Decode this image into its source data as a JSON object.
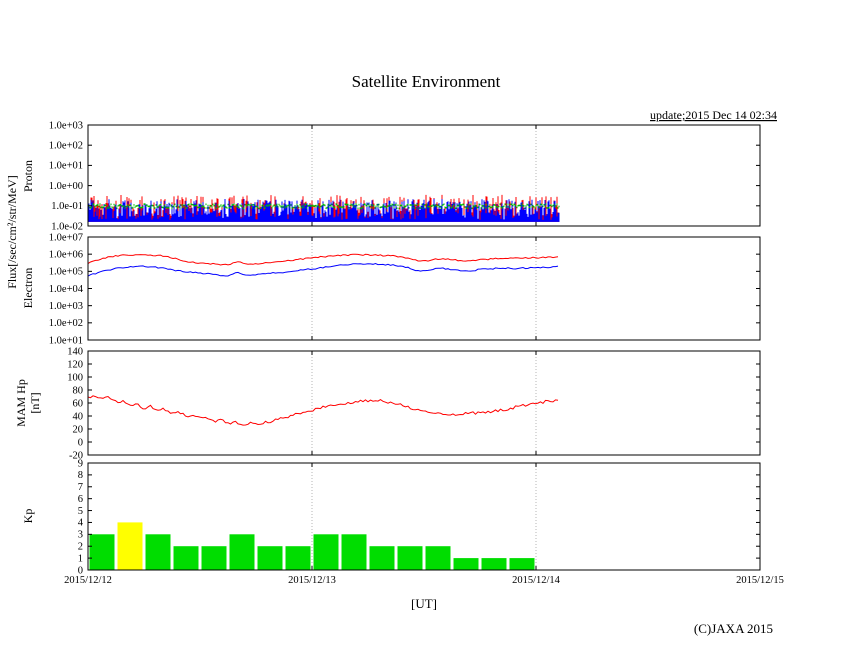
{
  "title": "Satellite Environment",
  "update_text": "update;2015 Dec 14 02:34",
  "copyright": "(C)JAXA 2015",
  "xaxis_label": "[UT]",
  "flux_axis_label": "Flux[/sec/cm²/str/MeV]",
  "x_ticklabels": [
    "2015/12/12",
    "2015/12/13",
    "2015/12/14",
    "2015/12/15"
  ],
  "colors": {
    "red": "#ff0000",
    "blue": "#0000ff",
    "proton_green": "#00bb00",
    "kp_green": "#00dd00",
    "kp_yellow": "#ffff00",
    "grid": "#b4b4b4",
    "frame": "#000000"
  },
  "chart_data": [
    {
      "type": "line",
      "name": "proton-flux",
      "ylabel": "Proton",
      "yscale": "log",
      "ylim": [
        0.01,
        1000
      ],
      "ytick_labels": [
        "1.0e+03",
        "1.0e+02",
        "1.0e+01",
        "1.0e+00",
        "1.0e-01",
        "1.0e-02"
      ],
      "ytick_values": [
        1000,
        100,
        10,
        1,
        0.1,
        0.01
      ],
      "x_range_hours": [
        0,
        72
      ],
      "data_end_hour": 50.57,
      "grid": "vertical-dotted",
      "series": [
        {
          "name": "proton-noise-red",
          "color": "#ff0000",
          "render": "noise-band",
          "min": 0.02,
          "max": 0.35,
          "bias": 1.4
        },
        {
          "name": "proton-noise-blue",
          "color": "#0000ff",
          "render": "noise-band",
          "min": 0.02,
          "max": 0.22,
          "bias": 1.0
        },
        {
          "name": "proton-noise-green",
          "color": "#00bb00",
          "render": "noise-dots",
          "level": 0.095,
          "jitter": 0.5
        }
      ]
    },
    {
      "type": "line",
      "name": "electron-flux",
      "ylabel": "Electron",
      "yscale": "log",
      "ylim": [
        10,
        10000000
      ],
      "ytick_labels": [
        "1.0e+07",
        "1.0e+06",
        "1.0e+05",
        "1.0e+04",
        "1.0e+03",
        "1.0e+02",
        "1.0e+01"
      ],
      "ytick_values": [
        10000000,
        1000000,
        100000,
        10000,
        1000,
        100,
        10
      ],
      "x_range_hours": [
        0,
        72
      ],
      "data_end_hour": 50.57,
      "grid": "vertical-dotted",
      "series": [
        {
          "name": "electron-red",
          "color": "#ff0000",
          "jitter": 0.18,
          "points": [
            [
              0,
              300000
            ],
            [
              1,
              450000
            ],
            [
              2,
              650000
            ],
            [
              3,
              780000
            ],
            [
              4,
              860000
            ],
            [
              5,
              900000
            ],
            [
              6,
              900000
            ],
            [
              7,
              870000
            ],
            [
              8,
              800000
            ],
            [
              9,
              600000
            ],
            [
              10,
              450000
            ],
            [
              11,
              350000
            ],
            [
              12,
              300000
            ],
            [
              13,
              280000
            ],
            [
              14,
              260000
            ],
            [
              15,
              240000
            ],
            [
              15.5,
              300000
            ],
            [
              16,
              400000
            ],
            [
              16.5,
              300000
            ],
            [
              17,
              260000
            ],
            [
              18,
              280000
            ],
            [
              19,
              300000
            ],
            [
              20,
              330000
            ],
            [
              21,
              380000
            ],
            [
              22,
              450000
            ],
            [
              23,
              520000
            ],
            [
              24,
              600000
            ],
            [
              25,
              700000
            ],
            [
              26,
              780000
            ],
            [
              27,
              850000
            ],
            [
              28,
              900000
            ],
            [
              29,
              920000
            ],
            [
              30,
              900000
            ],
            [
              31,
              870000
            ],
            [
              32,
              830000
            ],
            [
              33,
              760000
            ],
            [
              34,
              620000
            ],
            [
              35,
              450000
            ],
            [
              36,
              380000
            ],
            [
              37,
              500000
            ],
            [
              38,
              550000
            ],
            [
              39,
              500000
            ],
            [
              40,
              420000
            ],
            [
              41,
              400000
            ],
            [
              42,
              480000
            ],
            [
              43,
              520000
            ],
            [
              44,
              550000
            ],
            [
              45,
              550000
            ],
            [
              46,
              580000
            ],
            [
              47,
              600000
            ],
            [
              48,
              620000
            ],
            [
              49,
              650000
            ],
            [
              50,
              680000
            ],
            [
              50.6,
              700000
            ]
          ]
        },
        {
          "name": "electron-blue",
          "color": "#0000ff",
          "jitter": 0.18,
          "points": [
            [
              0,
              55000
            ],
            [
              1,
              80000
            ],
            [
              2,
              110000
            ],
            [
              3,
              145000
            ],
            [
              4,
              175000
            ],
            [
              5,
              195000
            ],
            [
              6,
              200000
            ],
            [
              7,
              180000
            ],
            [
              8,
              150000
            ],
            [
              9,
              120000
            ],
            [
              10,
              100000
            ],
            [
              11,
              90000
            ],
            [
              12,
              80000
            ],
            [
              13,
              70000
            ],
            [
              14,
              60000
            ],
            [
              15,
              50000
            ],
            [
              15.5,
              70000
            ],
            [
              16,
              90000
            ],
            [
              16.5,
              65000
            ],
            [
              17,
              60000
            ],
            [
              18,
              65000
            ],
            [
              19,
              70000
            ],
            [
              20,
              80000
            ],
            [
              21,
              90000
            ],
            [
              22,
              105000
            ],
            [
              23,
              120000
            ],
            [
              24,
              140000
            ],
            [
              25,
              160000
            ],
            [
              26,
              190000
            ],
            [
              27,
              220000
            ],
            [
              28,
              250000
            ],
            [
              29,
              270000
            ],
            [
              30,
              280000
            ],
            [
              31,
              270000
            ],
            [
              32,
              250000
            ],
            [
              33,
              220000
            ],
            [
              34,
              180000
            ],
            [
              35,
              120000
            ],
            [
              36,
              100000
            ],
            [
              37,
              140000
            ],
            [
              38,
              150000
            ],
            [
              39,
              130000
            ],
            [
              40,
              110000
            ],
            [
              41,
              100000
            ],
            [
              42,
              130000
            ],
            [
              43,
              140000
            ],
            [
              44,
              150000
            ],
            [
              45,
              150000
            ],
            [
              46,
              150000
            ],
            [
              47,
              155000
            ],
            [
              48,
              160000
            ],
            [
              49,
              170000
            ],
            [
              50,
              190000
            ],
            [
              50.6,
              210000
            ]
          ]
        }
      ]
    },
    {
      "type": "line",
      "name": "mam-hp",
      "ylabel": "MAM Hp",
      "ylabel2": "[nT]",
      "yscale": "linear",
      "ylim": [
        -20,
        140
      ],
      "ytick_labels": [
        "140",
        "120",
        "100",
        "80",
        "60",
        "40",
        "20",
        "0",
        "-20"
      ],
      "ytick_values": [
        140,
        120,
        100,
        80,
        60,
        40,
        20,
        0,
        -20
      ],
      "x_range_hours": [
        0,
        72
      ],
      "data_end_hour": 50.57,
      "grid": "vertical-dotted",
      "series": [
        {
          "name": "hp-red",
          "color": "#ff0000",
          "jitter": 2.2,
          "points": [
            [
              0,
              68
            ],
            [
              0.7,
              72
            ],
            [
              1.5,
              65
            ],
            [
              2.2,
              69
            ],
            [
              3,
              61
            ],
            [
              3.7,
              64
            ],
            [
              4.5,
              56
            ],
            [
              5.2,
              59
            ],
            [
              6,
              52
            ],
            [
              6.7,
              55
            ],
            [
              7.5,
              47
            ],
            [
              8.2,
              51
            ],
            [
              9,
              43
            ],
            [
              9.7,
              47
            ],
            [
              10.5,
              39
            ],
            [
              11.2,
              42
            ],
            [
              12,
              36
            ],
            [
              12.7,
              39
            ],
            [
              13.5,
              32
            ],
            [
              14.2,
              35
            ],
            [
              15,
              28
            ],
            [
              15.7,
              31
            ],
            [
              16.5,
              26
            ],
            [
              17.2,
              29
            ],
            [
              18,
              27
            ],
            [
              19,
              30
            ],
            [
              20,
              33
            ],
            [
              21,
              37
            ],
            [
              22,
              41
            ],
            [
              23,
              45
            ],
            [
              24,
              49
            ],
            [
              25,
              53
            ],
            [
              26,
              56
            ],
            [
              27,
              59
            ],
            [
              28,
              61
            ],
            [
              29,
              63
            ],
            [
              30,
              64
            ],
            [
              31,
              64
            ],
            [
              32,
              62
            ],
            [
              33,
              59
            ],
            [
              34,
              55
            ],
            [
              35,
              51
            ],
            [
              36,
              48
            ],
            [
              37,
              45
            ],
            [
              38,
              44
            ],
            [
              39,
              43
            ],
            [
              40,
              43
            ],
            [
              41,
              45
            ],
            [
              42,
              44
            ],
            [
              43,
              46
            ],
            [
              44,
              48
            ],
            [
              45,
              51
            ],
            [
              46,
              54
            ],
            [
              47,
              57
            ],
            [
              48,
              60
            ],
            [
              49,
              62
            ],
            [
              50,
              63
            ],
            [
              50.6,
              64
            ]
          ]
        }
      ]
    },
    {
      "type": "bar",
      "name": "kp-index",
      "ylabel": "Kp",
      "yscale": "linear",
      "ylim": [
        0,
        9
      ],
      "ytick_labels": [
        "9",
        "8",
        "7",
        "6",
        "5",
        "4",
        "3",
        "2",
        "1",
        "0"
      ],
      "ytick_values": [
        9,
        8,
        7,
        6,
        5,
        4,
        3,
        2,
        1,
        0
      ],
      "x_range_hours": [
        0,
        72
      ],
      "bin_hours": 3,
      "yellow_from": 4,
      "values": [
        3,
        4,
        3,
        2,
        2,
        3,
        2,
        2,
        3,
        3,
        2,
        2,
        2,
        1,
        1,
        1
      ],
      "grid": "vertical-dotted"
    }
  ]
}
